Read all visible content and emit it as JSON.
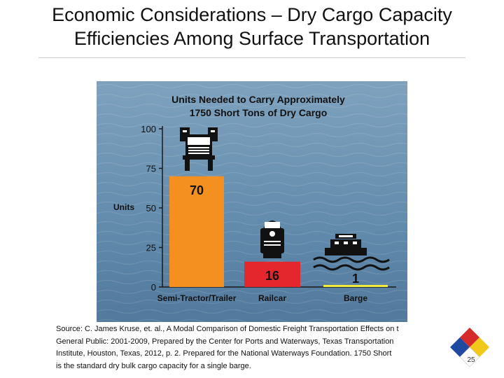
{
  "slide": {
    "title_line1": "Economic Considerations – Dry Cargo Capacity",
    "title_line2": "Efficiencies Among Surface Transportation",
    "page_number": "25"
  },
  "chart_data": {
    "type": "bar",
    "title_line1": "Units Needed to Carry Approximately",
    "title_line2": "1750 Short Tons of Dry Cargo",
    "categories": [
      "Semi-Tractor/Trailer",
      "Railcar",
      "Barge"
    ],
    "values": [
      70,
      16,
      1
    ],
    "data_labels": [
      "70",
      "16",
      "1"
    ],
    "bar_colors": [
      "#f39020",
      "#e4262d",
      "#f4ec3c"
    ],
    "ylabel": "Units",
    "xlabel": "",
    "ylim": [
      0,
      100
    ],
    "yticks": [
      0,
      25,
      50,
      75,
      100
    ],
    "ytick_labels": [
      "0",
      "25",
      "50",
      "75",
      "100"
    ],
    "icons": [
      "truck-icon",
      "locomotive-icon",
      "towboat-icon"
    ],
    "grid": false
  },
  "source": {
    "lines": [
      "Source: C. James Kruse, et. al., A Modal Comparison of Domestic Freight Transportation Effects on t",
      "General Public: 2001-2009, Prepared by the Center for Ports and Waterways, Texas Transportation",
      "Institute, Houston, Texas, 2012, p. 2. Prepared for the National Waterways Foundation.  1750 Short",
      "is the standard dry bulk cargo capacity for a single barge."
    ]
  },
  "colors": {
    "water_top": "#7ea2be",
    "water_bottom": "#53799c",
    "axis": "#1a1a1a",
    "chart_text": "#111111",
    "logo_blue": "#1f4aa0",
    "logo_red": "#d62b2b",
    "logo_yellow": "#f2c81a",
    "logo_white": "#ffffff"
  }
}
